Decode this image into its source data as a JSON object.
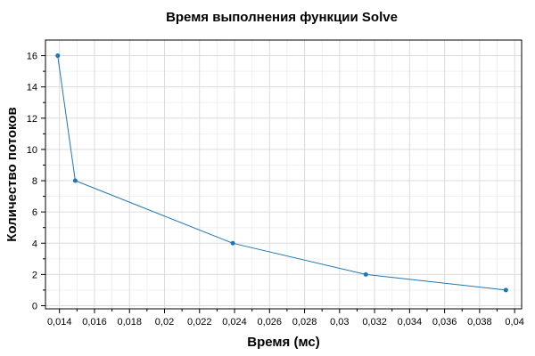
{
  "chart_data": {
    "type": "line",
    "title": "Время выполнения функции Solve",
    "xlabel": "Время (мс)",
    "ylabel": "Количество потоков",
    "xlim": [
      0.0132,
      0.0404
    ],
    "ylim": [
      -0.2,
      17.0
    ],
    "x_ticks": [
      0.014,
      0.016,
      0.018,
      0.02,
      0.022,
      0.024,
      0.026,
      0.028,
      0.03,
      0.032,
      0.034,
      0.036,
      0.038,
      0.04
    ],
    "x_tick_labels": [
      "0,014",
      "0,016",
      "0,018",
      "0,02",
      "0,022",
      "0,024",
      "0,026",
      "0,028",
      "0,03",
      "0,032",
      "0,034",
      "0,036",
      "0,038",
      "0,04"
    ],
    "y_ticks": [
      0,
      2,
      4,
      6,
      8,
      10,
      12,
      14,
      16
    ],
    "y_tick_labels": [
      "0",
      "2",
      "4",
      "6",
      "8",
      "10",
      "12",
      "14",
      "16"
    ],
    "grid": true,
    "series": [
      {
        "color": "#1f77b4",
        "x": [
          0.0139,
          0.0149,
          0.0239,
          0.0315,
          0.0395
        ],
        "y": [
          16,
          8,
          4,
          2,
          1
        ]
      }
    ]
  }
}
